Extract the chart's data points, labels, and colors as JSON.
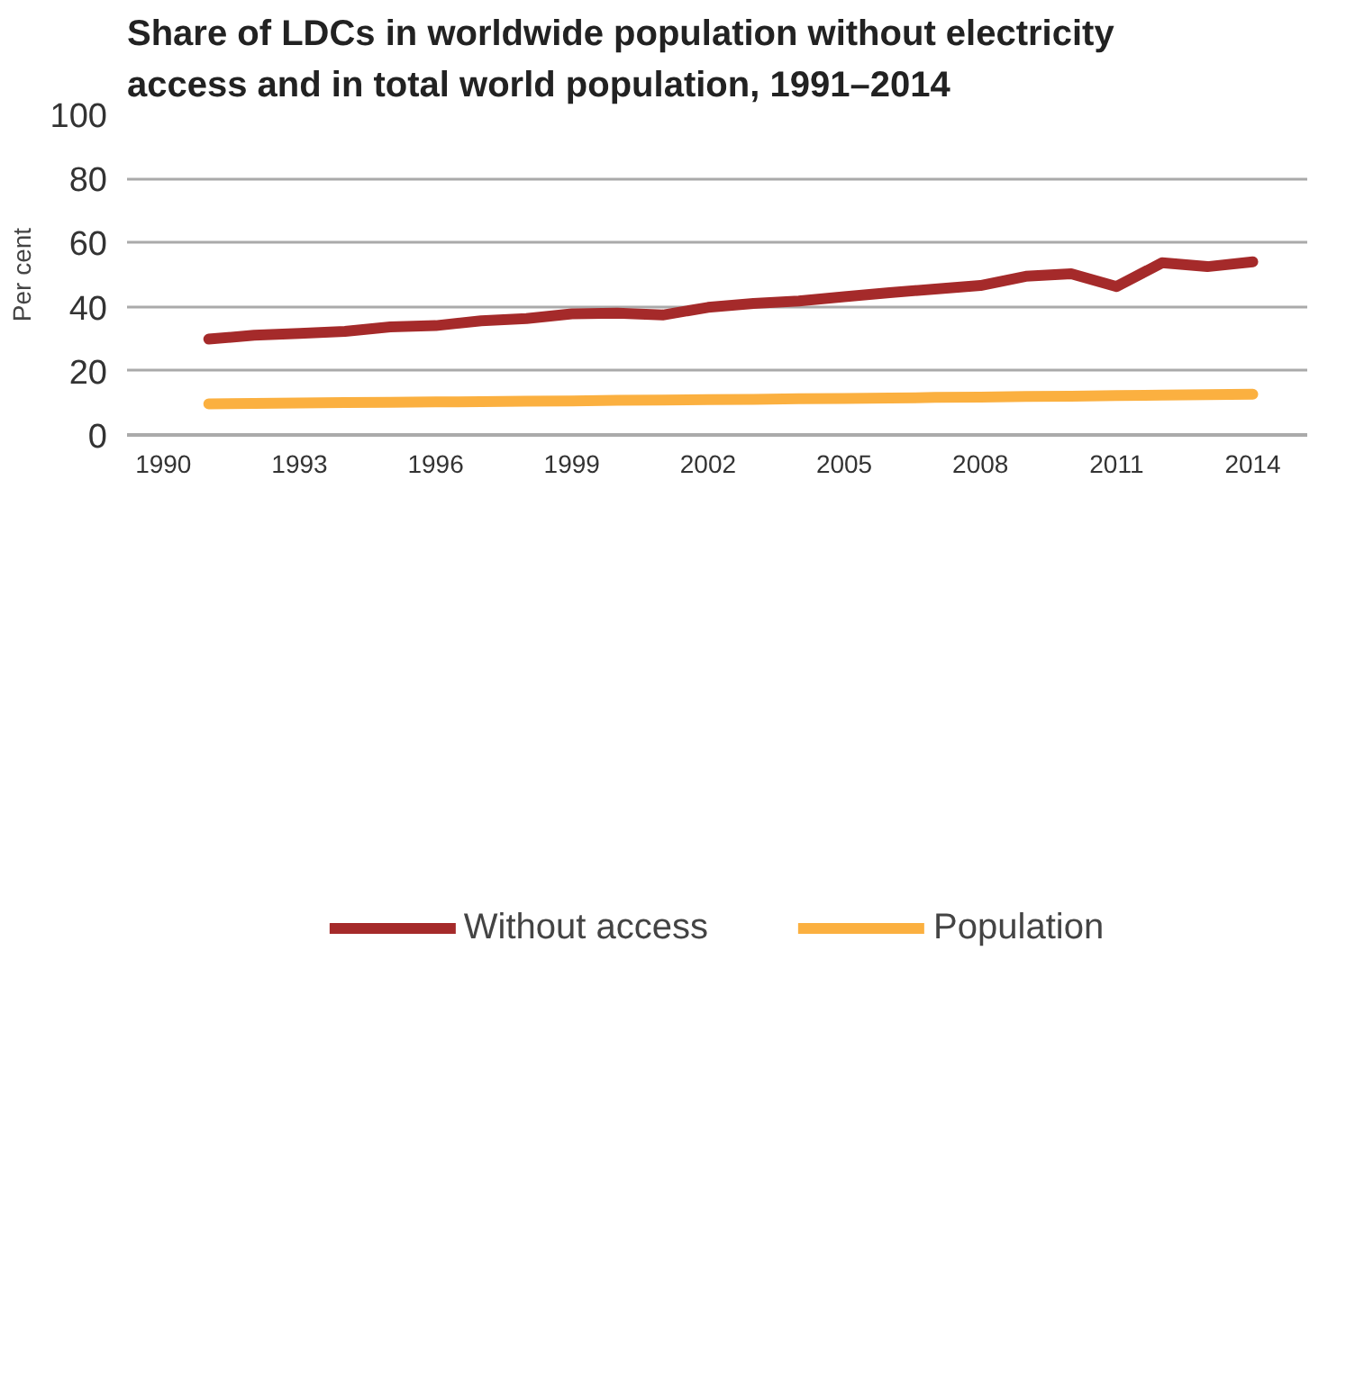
{
  "chart_data": {
    "type": "line",
    "title": "Share of LDCs in worldwide population without electricity access and in total world population, 1991–2014",
    "ylabel": "Per cent",
    "x": [
      1991,
      1992,
      1993,
      1994,
      1995,
      1996,
      1997,
      1998,
      1999,
      2000,
      2001,
      2002,
      2003,
      2004,
      2005,
      2006,
      2007,
      2008,
      2009,
      2010,
      2011,
      2012,
      2013,
      2014
    ],
    "series": [
      {
        "name": "Without access",
        "color": "#a52a2a",
        "values": [
          29.9,
          31.1,
          31.7,
          32.3,
          33.7,
          34.1,
          35.6,
          36.3,
          37.8,
          38.0,
          37.4,
          39.8,
          41.0,
          41.8,
          43.1,
          44.4,
          45.5,
          46.6,
          49.5,
          50.3,
          46.3,
          53.7,
          52.5,
          54.0
        ]
      },
      {
        "name": "Population",
        "color": "#fbb040",
        "values": [
          9.7,
          9.8,
          10.0,
          10.1,
          10.2,
          10.3,
          10.4,
          10.5,
          10.6,
          10.8,
          10.9,
          11.0,
          11.1,
          11.3,
          11.4,
          11.5,
          11.7,
          11.8,
          12.0,
          12.1,
          12.3,
          12.4,
          12.6,
          12.7
        ]
      }
    ],
    "xlim": [
      1989.2,
      2015.2
    ],
    "xticks": [
      1990,
      1993,
      1996,
      1999,
      2002,
      2005,
      2008,
      2011,
      2014
    ],
    "ylim": [
      0,
      100
    ],
    "yticks": [
      0,
      20,
      40,
      60,
      80,
      100
    ],
    "grid": "y",
    "legend": "bottom",
    "marker": "none",
    "line_style": "solid"
  }
}
